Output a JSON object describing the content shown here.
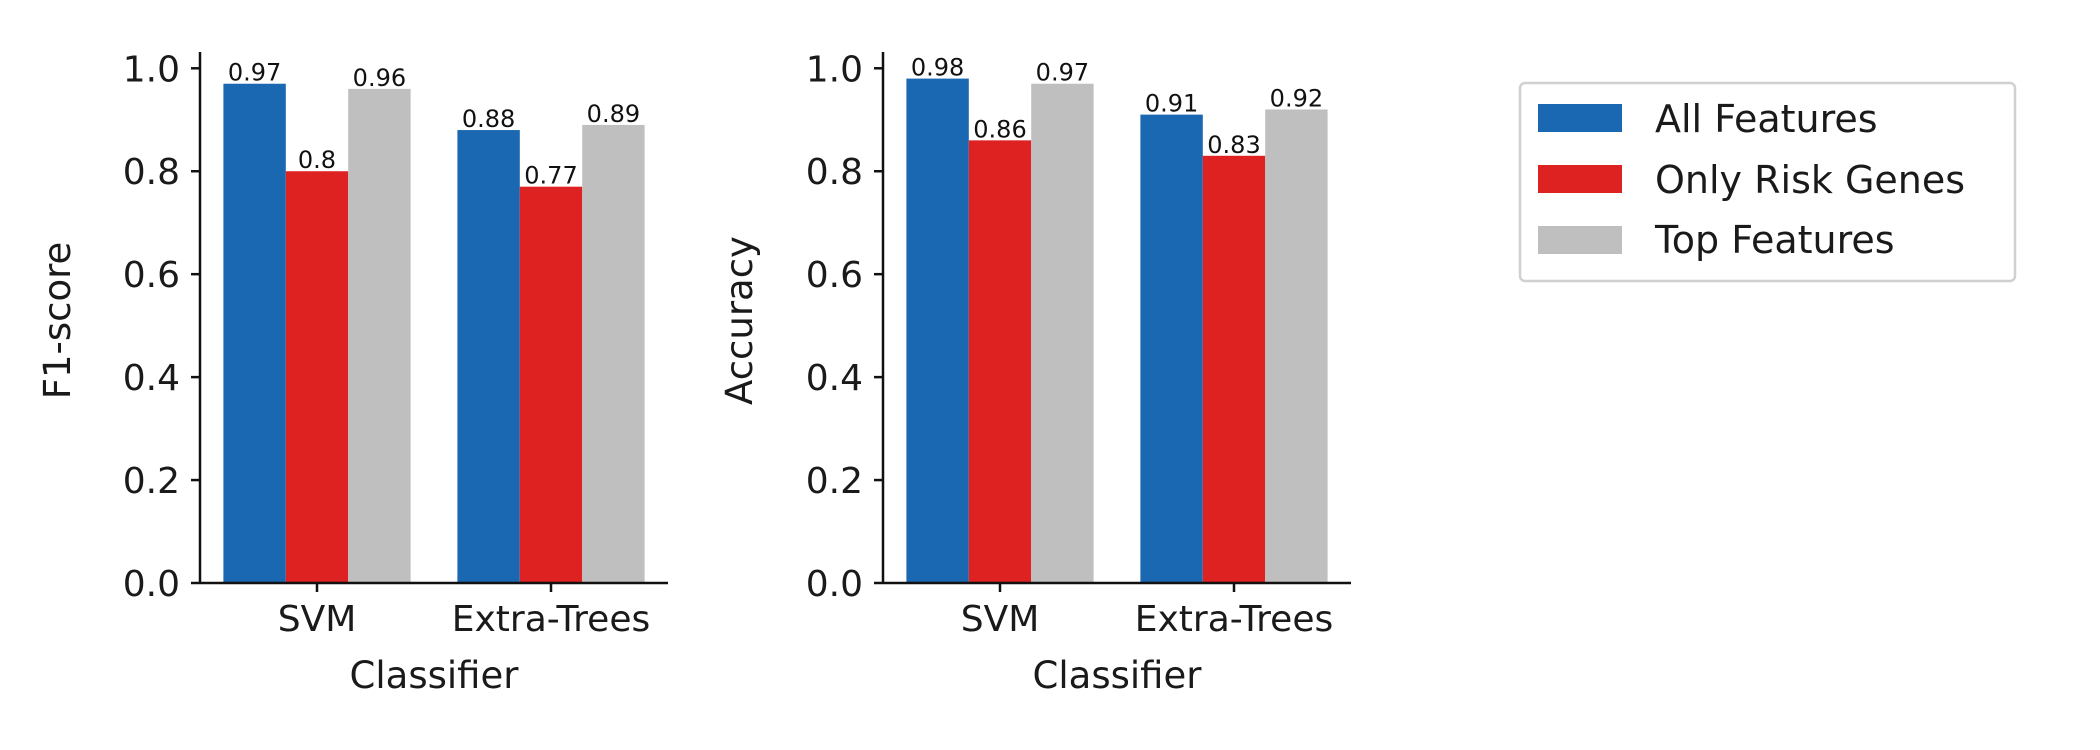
{
  "chart_data": [
    {
      "type": "bar",
      "categories": [
        "SVM",
        "Extra-Trees"
      ],
      "series": [
        {
          "name": "All Features",
          "values": [
            0.97,
            0.88
          ],
          "labels": [
            "0.97",
            "0.88"
          ]
        },
        {
          "name": "Only Risk Genes",
          "values": [
            0.8,
            0.77
          ],
          "labels": [
            "0.8",
            "0.77"
          ]
        },
        {
          "name": "Top Features",
          "values": [
            0.96,
            0.89
          ],
          "labels": [
            "0.96",
            "0.89"
          ]
        }
      ],
      "xlabel": "Classifier",
      "ylabel": "F1-score",
      "ylim": [
        0,
        1.02
      ],
      "yticks": [
        "0.0",
        "0.2",
        "0.4",
        "0.6",
        "0.8",
        "1.0"
      ],
      "grid": false
    },
    {
      "type": "bar",
      "categories": [
        "SVM",
        "Extra-Trees"
      ],
      "series": [
        {
          "name": "All Features",
          "values": [
            0.98,
            0.91
          ],
          "labels": [
            "0.98",
            "0.91"
          ]
        },
        {
          "name": "Only Risk Genes",
          "values": [
            0.86,
            0.83
          ],
          "labels": [
            "0.86",
            "0.83"
          ]
        },
        {
          "name": "Top Features",
          "values": [
            0.97,
            0.92
          ],
          "labels": [
            "0.97",
            "0.92"
          ]
        }
      ],
      "xlabel": "Classifier",
      "ylabel": "Accuracy",
      "ylim": [
        0,
        1.02
      ],
      "yticks": [
        "0.0",
        "0.2",
        "0.4",
        "0.6",
        "0.8",
        "1.0"
      ],
      "grid": false
    }
  ],
  "legend": {
    "placement": "right",
    "items": [
      {
        "label": "All Features",
        "color": "#1a67b2"
      },
      {
        "label": "Only Risk Genes",
        "color": "#de2121"
      },
      {
        "label": "Top Features",
        "color": "#bfbfbf"
      }
    ]
  },
  "colors": {
    "All Features": "#1a67b2",
    "Only Risk Genes": "#de2121",
    "Top Features": "#bfbfbf"
  }
}
